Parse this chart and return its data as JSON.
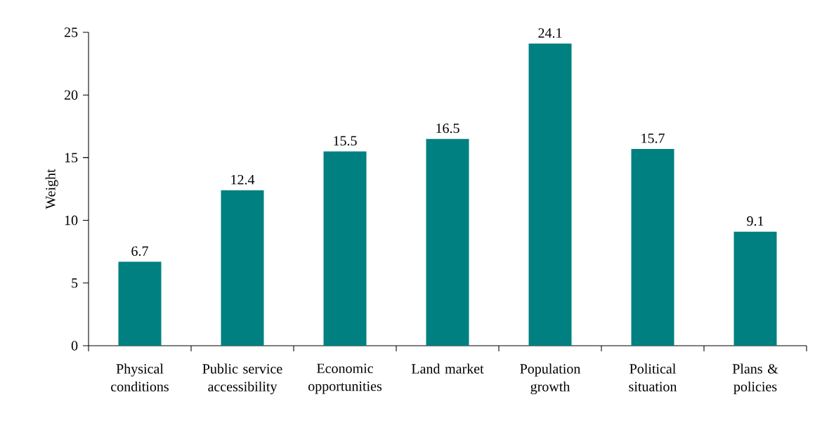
{
  "chart_data": {
    "type": "bar",
    "ylabel": "Weight",
    "categories": [
      "Physical conditions",
      "Public service accessibility",
      "Economic opportunities",
      "Land market",
      "Population growth",
      "Political situation",
      "Plans & policies"
    ],
    "values": [
      6.7,
      12.4,
      15.5,
      16.5,
      24.1,
      15.7,
      9.1
    ],
    "color": "#008080",
    "data_labels": true,
    "grid": false,
    "ylim": [
      0,
      25
    ],
    "yticks": [
      0,
      5,
      10,
      15,
      20,
      25
    ]
  }
}
